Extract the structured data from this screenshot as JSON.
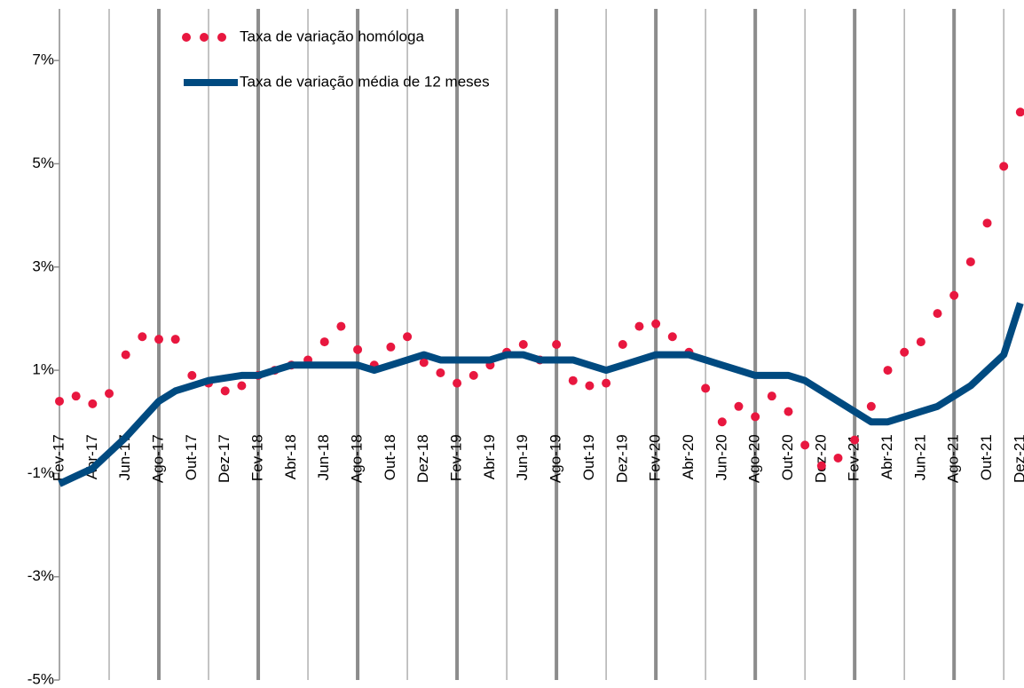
{
  "chart_data": {
    "type": "line",
    "categories": [
      "Fev-17",
      null,
      "Abr-17",
      null,
      "Jun-17",
      null,
      "Ago-17",
      null,
      "Out-17",
      null,
      "Dez-17",
      null,
      "Fev-18",
      null,
      "Abr-18",
      null,
      "Jun-18",
      null,
      "Ago-18",
      null,
      "Out-18",
      null,
      "Dez-18",
      null,
      "Fev-19",
      null,
      "Abr-19",
      null,
      "Jun-19",
      null,
      "Ago-19",
      null,
      "Out-19",
      null,
      "Dez-19",
      null,
      "Fev-20",
      null,
      "Abr-20",
      null,
      "Jun-20",
      null,
      "Ago-20",
      null,
      "Out-20",
      null,
      "Dez-20",
      null,
      "Fev-21",
      null,
      "Abr-21",
      null,
      "Jun-21",
      null,
      "Ago-21",
      null,
      "Out-21",
      null,
      "Dez-21"
    ],
    "series": [
      {
        "name": "Taxa de variação homóloga",
        "color": "#e8173f",
        "style": "dots",
        "values": [
          0.4,
          0.5,
          0.35,
          0.55,
          1.3,
          1.65,
          1.6,
          1.6,
          0.9,
          0.75,
          0.6,
          0.7,
          0.9,
          1.0,
          1.1,
          1.2,
          1.55,
          1.85,
          1.4,
          1.1,
          1.45,
          1.65,
          1.15,
          0.95,
          0.75,
          0.9,
          1.1,
          1.35,
          1.5,
          1.2,
          1.5,
          0.8,
          0.7,
          0.75,
          1.5,
          1.85,
          1.9,
          1.65,
          1.35,
          0.65,
          0.0,
          0.3,
          0.1,
          0.5,
          0.2,
          -0.45,
          -0.85,
          -0.7,
          -0.35,
          0.3,
          1.0,
          1.35,
          1.55,
          2.1,
          2.45,
          3.1,
          3.85,
          4.95,
          6.0
        ]
      },
      {
        "name": "Taxa de variação média de 12 meses",
        "color": "#004a80",
        "style": "line",
        "values": [
          -1.2,
          -1.05,
          -0.9,
          -0.6,
          -0.3,
          0.05,
          0.4,
          0.6,
          0.7,
          0.8,
          0.85,
          0.9,
          0.9,
          1.0,
          1.1,
          1.1,
          1.1,
          1.1,
          1.1,
          1.0,
          1.1,
          1.2,
          1.3,
          1.2,
          1.2,
          1.2,
          1.2,
          1.3,
          1.3,
          1.2,
          1.2,
          1.2,
          1.1,
          1.0,
          1.1,
          1.2,
          1.3,
          1.3,
          1.3,
          1.2,
          1.1,
          1.0,
          0.9,
          0.9,
          0.9,
          0.8,
          0.6,
          0.4,
          0.2,
          0.0,
          0.0,
          0.1,
          0.2,
          0.3,
          0.5,
          0.7,
          1.0,
          1.3,
          2.3
        ]
      }
    ],
    "ylim": [
      -5,
      8
    ],
    "yticks": [
      {
        "value": 7,
        "label": "7%"
      },
      {
        "value": 5,
        "label": "5%"
      },
      {
        "value": 3,
        "label": "3%"
      },
      {
        "value": 1,
        "label": "1%"
      },
      {
        "value": -1,
        "label": "-1%"
      },
      {
        "value": -3,
        "label": "-3%"
      },
      {
        "value": -5,
        "label": "-5%"
      }
    ],
    "legend": "top"
  }
}
